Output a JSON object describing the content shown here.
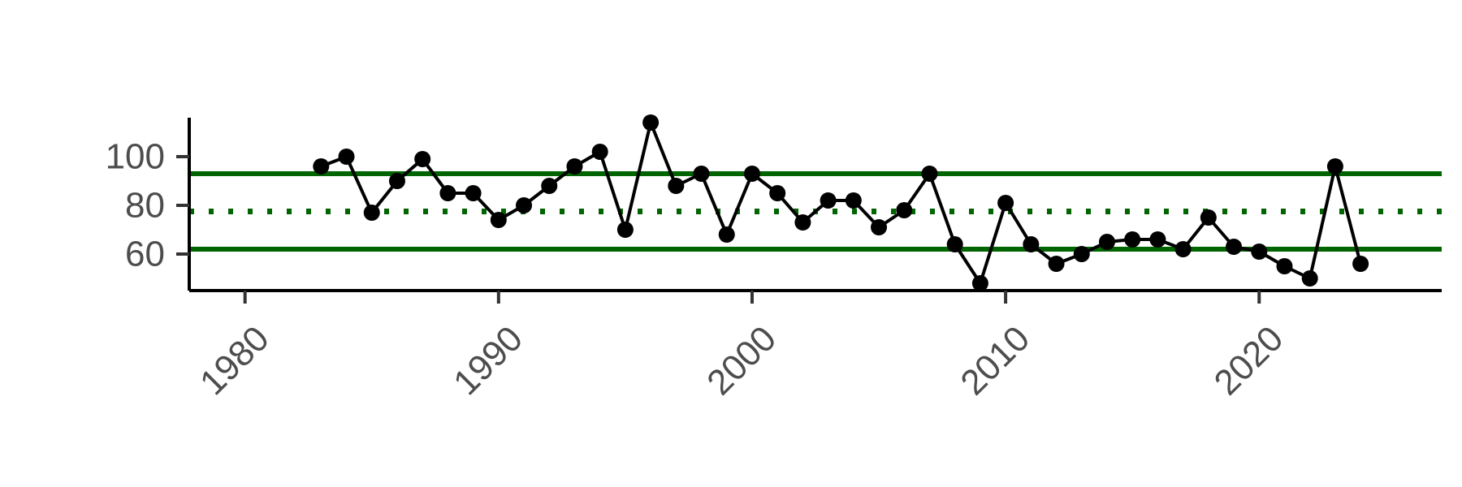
{
  "chart_data": {
    "type": "line",
    "title": "",
    "xlabel": "",
    "ylabel": "",
    "xlim": [
      1977.8,
      2027.2
    ],
    "ylim": [
      45,
      116
    ],
    "x_ticks": [
      1980,
      1990,
      2000,
      2010,
      2020
    ],
    "y_ticks": [
      60,
      80,
      100
    ],
    "grid": false,
    "legend": "none",
    "colors": {
      "series": "#000000",
      "reference": "#006400",
      "axis": "#000000",
      "tick_label": "#4d4d4d"
    },
    "reference_lines": [
      {
        "y": 93,
        "style": "solid"
      },
      {
        "y": 77.5,
        "style": "dotted"
      },
      {
        "y": 62,
        "style": "solid"
      }
    ],
    "series": [
      {
        "x": [
          1983,
          1984,
          1985,
          1986,
          1987,
          1988,
          1989,
          1990,
          1991,
          1992,
          1993,
          1994,
          1995,
          1996,
          1997,
          1998,
          1999,
          2000,
          2001,
          2002,
          2003,
          2004,
          2005,
          2006,
          2007,
          2008,
          2009,
          2010,
          2011,
          2012,
          2013,
          2014,
          2015,
          2016,
          2017,
          2018,
          2019,
          2020,
          2021,
          2022,
          2023,
          2024
        ],
        "y": [
          96,
          100,
          77,
          90,
          99,
          85,
          85,
          74,
          80,
          88,
          96,
          102,
          70,
          114,
          88,
          93,
          68,
          93,
          85,
          73,
          82,
          82,
          71,
          78,
          93,
          64,
          48,
          81,
          64,
          56,
          60,
          65,
          66,
          66,
          62,
          75,
          63,
          61,
          55,
          50,
          96,
          56
        ]
      }
    ]
  }
}
